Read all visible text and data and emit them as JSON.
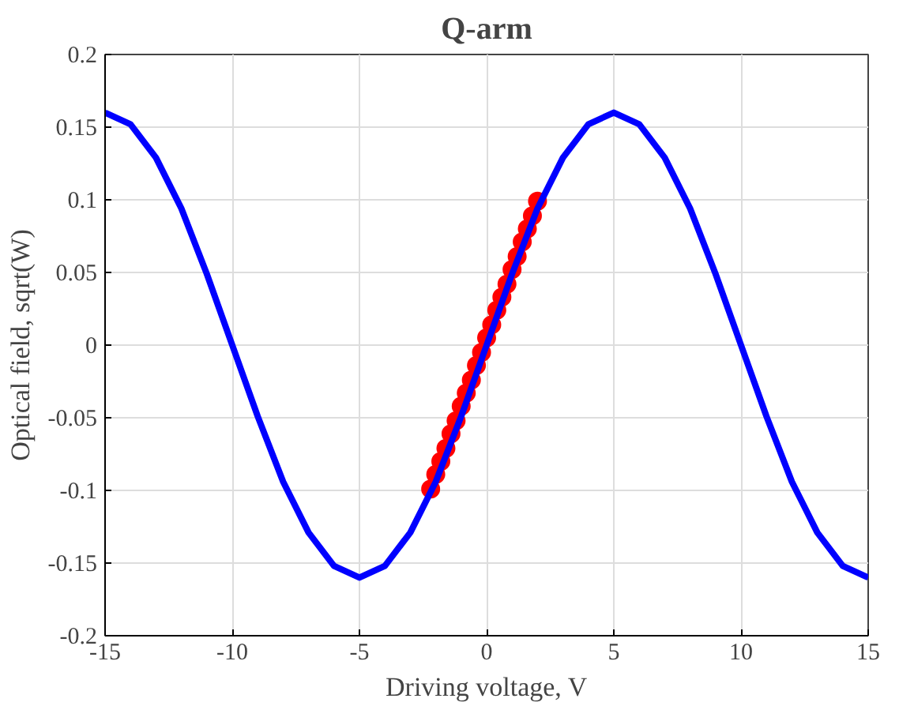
{
  "chart_data": {
    "type": "line",
    "title": "Q-arm",
    "xlabel": "Driving voltage, V",
    "ylabel": "Optical field, sqrt(W)",
    "xlim": [
      -15,
      15
    ],
    "xticks": [
      -15,
      -10,
      -5,
      0,
      5,
      10,
      15
    ],
    "ylim": [
      -0.2,
      0.2
    ],
    "yticks": [
      -0.2,
      -0.15,
      -0.1,
      -0.05,
      0,
      0.05,
      0.1,
      0.15,
      0.2
    ],
    "grid": true,
    "series": [
      {
        "type": "scatter",
        "marker": "circle",
        "color": "#ff0000",
        "x": [
          -2.2,
          -2.0,
          -1.8,
          -1.6,
          -1.4,
          -1.2,
          -1.0,
          -0.8,
          -0.6,
          -0.4,
          -0.2,
          0,
          0.2,
          0.4,
          0.6,
          0.8,
          1.0,
          1.2,
          1.4,
          1.6,
          1.8,
          2.0
        ],
        "values": [
          -0.099,
          -0.089,
          -0.08,
          -0.071,
          -0.061,
          -0.052,
          -0.042,
          -0.033,
          -0.024,
          -0.014,
          -0.005,
          0.005,
          0.014,
          0.024,
          0.033,
          0.042,
          0.052,
          0.061,
          0.071,
          0.08,
          0.089,
          0.099
        ]
      },
      {
        "color": "#0000ff",
        "x": [
          -15,
          -14,
          -13,
          -12,
          -11,
          -10,
          -9,
          -8,
          -7,
          -6,
          -5,
          -4,
          -3,
          -2,
          -1,
          0,
          1,
          2,
          3,
          4,
          5,
          6,
          7,
          8,
          9,
          10,
          11,
          12,
          13,
          14,
          15
        ],
        "values": [
          0.16,
          0.152,
          0.129,
          0.094,
          0.049,
          0,
          -0.049,
          -0.094,
          -0.129,
          -0.152,
          -0.16,
          -0.152,
          -0.129,
          -0.094,
          -0.049,
          0,
          0.049,
          0.094,
          0.129,
          0.152,
          0.16,
          0.152,
          0.129,
          0.094,
          0.049,
          0,
          -0.049,
          -0.094,
          -0.129,
          -0.152,
          -0.16
        ]
      }
    ]
  }
}
